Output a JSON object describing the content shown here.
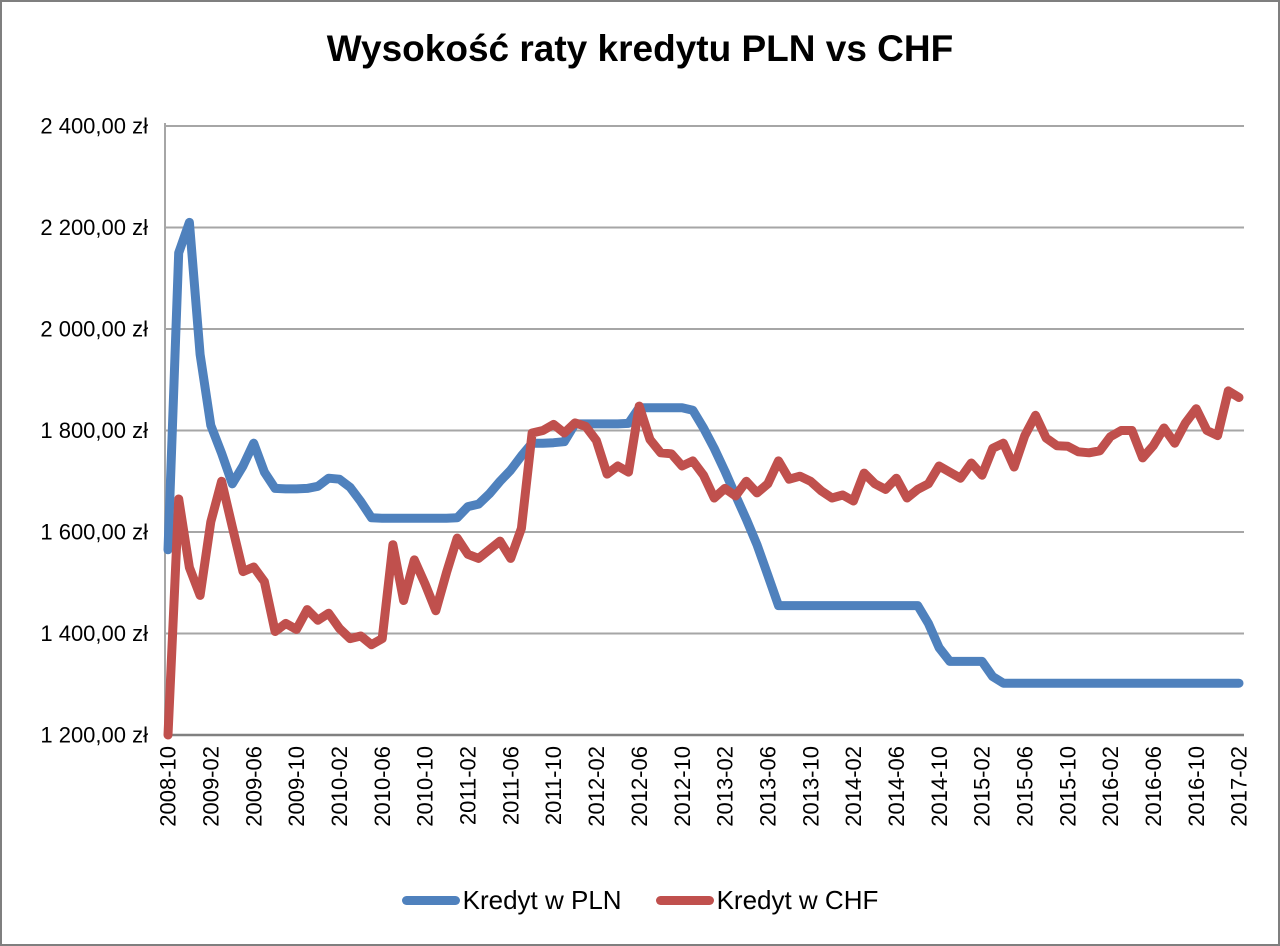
{
  "frame": {
    "background": "#ffffff",
    "border_color": "#7f7f7f"
  },
  "chart_data": {
    "type": "line",
    "title": "Wysokość raty kredytu PLN vs CHF",
    "grid": true,
    "legend_position": "bottom",
    "currency_unit": "zł",
    "y_axis": {
      "min": 1200,
      "max": 2400,
      "step": 200,
      "tick_labels": [
        "1 200,00 zł",
        "1 400,00 zł",
        "1 600,00 zł",
        "1 800,00 zł",
        "2 000,00 zł",
        "2 200,00 zł",
        "2 400,00 zł"
      ]
    },
    "x_axis": {
      "start": "2008-10",
      "end": "2017-02",
      "frequency": "monthly",
      "tick_labels": [
        "2008-10",
        "2009-02",
        "2009-06",
        "2009-10",
        "2010-02",
        "2010-06",
        "2010-10",
        "2011-02",
        "2011-06",
        "2011-10",
        "2012-02",
        "2012-06",
        "2012-10",
        "2013-02",
        "2013-06",
        "2013-10",
        "2014-02",
        "2014-06",
        "2014-10",
        "2015-02",
        "2015-06",
        "2015-10",
        "2016-02",
        "2016-06",
        "2016-10",
        "2017-02"
      ]
    },
    "gridline_color": "#a6a6a6",
    "axis_color": "#808080",
    "series": [
      {
        "name": "Kredyt w PLN",
        "color": "#4F81BD",
        "values": [
          1565,
          2150,
          2210,
          1950,
          1810,
          1755,
          1695,
          1730,
          1775,
          1718,
          1686,
          1685,
          1685,
          1686,
          1690,
          1706,
          1704,
          1688,
          1660,
          1628,
          1627,
          1627,
          1627,
          1627,
          1627,
          1627,
          1627,
          1628,
          1650,
          1655,
          1675,
          1700,
          1722,
          1750,
          1775,
          1775,
          1776,
          1778,
          1813,
          1813,
          1813,
          1813,
          1813,
          1814,
          1845,
          1845,
          1845,
          1845,
          1845,
          1840,
          1805,
          1765,
          1720,
          1672,
          1625,
          1575,
          1515,
          1455,
          1455,
          1455,
          1455,
          1455,
          1455,
          1455,
          1455,
          1455,
          1455,
          1455,
          1455,
          1455,
          1455,
          1420,
          1372,
          1345,
          1345,
          1345,
          1345,
          1315,
          1302,
          1302,
          1302,
          1302,
          1302,
          1302,
          1302,
          1302,
          1302,
          1302,
          1302,
          1302,
          1302,
          1302,
          1302,
          1302,
          1302,
          1302,
          1302,
          1302,
          1302,
          1302,
          1302
        ]
      },
      {
        "name": "Kredyt w CHF",
        "color": "#C0504D",
        "values": [
          1200,
          1665,
          1530,
          1475,
          1620,
          1700,
          1610,
          1522,
          1531,
          1502,
          1404,
          1420,
          1408,
          1447,
          1426,
          1440,
          1410,
          1390,
          1395,
          1378,
          1390,
          1575,
          1465,
          1545,
          1498,
          1445,
          1520,
          1588,
          1556,
          1548,
          1565,
          1582,
          1548,
          1607,
          1795,
          1800,
          1812,
          1795,
          1815,
          1808,
          1780,
          1714,
          1730,
          1718,
          1848,
          1782,
          1756,
          1754,
          1730,
          1740,
          1712,
          1667,
          1686,
          1671,
          1700,
          1677,
          1695,
          1740,
          1704,
          1710,
          1700,
          1681,
          1667,
          1673,
          1661,
          1716,
          1695,
          1684,
          1706,
          1667,
          1684,
          1695,
          1730,
          1718,
          1706,
          1736,
          1712,
          1765,
          1775,
          1728,
          1790,
          1830,
          1785,
          1770,
          1769,
          1758,
          1756,
          1760,
          1788,
          1800,
          1800,
          1746,
          1770,
          1805,
          1775,
          1815,
          1843,
          1800,
          1790,
          1878,
          1865
        ]
      }
    ]
  }
}
